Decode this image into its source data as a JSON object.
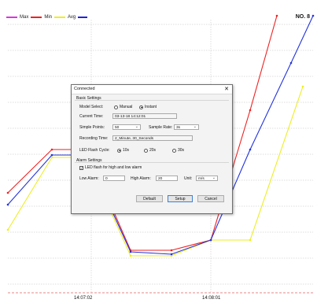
{
  "chart": {
    "legend": [
      {
        "name": "Max",
        "color": "#dd33dd"
      },
      {
        "name": "Min",
        "color": "#ee2222"
      },
      {
        "name": "Avg",
        "color": "#eeee22"
      }
    ],
    "channel_label": "NO. 8",
    "x_ticks": [
      "14:07:02",
      "14:08:01"
    ]
  },
  "chart_data": {
    "type": "line",
    "x": [
      "14:07:02",
      "14:08:01"
    ],
    "series": [
      {
        "name": "Max",
        "color": "#dd33dd"
      },
      {
        "name": "Min",
        "color": "#ee2222"
      },
      {
        "name": "Avg",
        "color": "#eeee22"
      }
    ],
    "grid": true,
    "legend_position": "top-left"
  },
  "dialog": {
    "title": "Connected",
    "close_glyph": "✕",
    "basic_settings": {
      "title": "Basic Settings",
      "model_select_label": "Model Select:",
      "model_options": [
        "Manual",
        "Instant"
      ],
      "model_selected": "Instant",
      "current_time_label": "Current Time:",
      "current_time_value": "03-13-18 14:12:01",
      "simple_points_label": "Simple Points:",
      "simple_points_value": "50",
      "sample_rate_label": "Sample Rate:",
      "sample_rate_value": "3s",
      "recording_time_label": "Recording Time:",
      "recording_time_value": "2_Minute, 30_Seconds",
      "led_flash_cycle_label": "LED Flash Cycle:",
      "led_options": [
        "10s",
        "20s",
        "30s"
      ],
      "led_selected": "10s"
    },
    "alarm_settings": {
      "title": "Alarm Settings",
      "led_flash_label": "LED flash for high and low alarm",
      "led_flash_checked": true,
      "low_alarm_label": "Low Alarm:",
      "low_alarm_value": "0",
      "high_alarm_label": "High Alarm:",
      "high_alarm_value": "20",
      "unit_label": "Unit:",
      "unit_value": "m/s"
    },
    "buttons": {
      "default": "Default",
      "setup": "Setup",
      "cancel": "Cancel"
    },
    "icons": {
      "close": "close-icon",
      "dropdown": "chevron-down-icon"
    }
  }
}
